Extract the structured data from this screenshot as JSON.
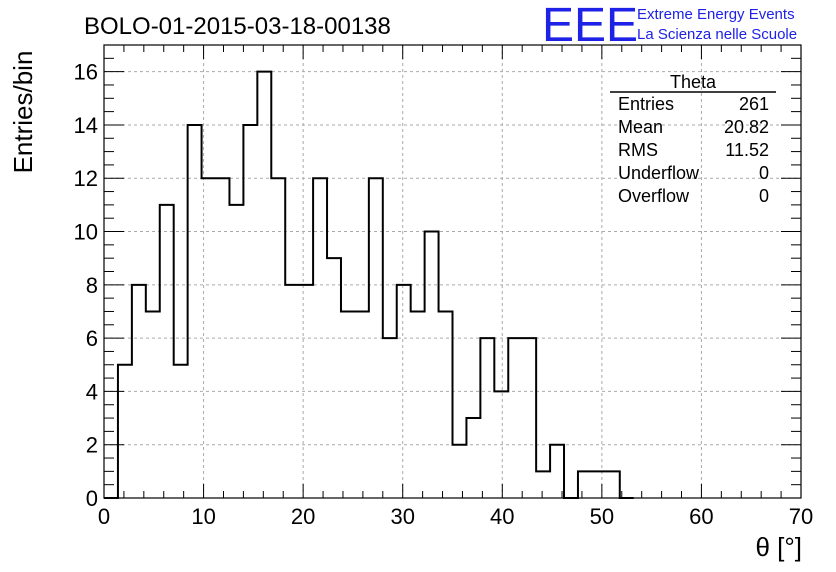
{
  "chart_data": {
    "type": "bar",
    "title": "BOLO-01-2015-03-18-00138",
    "xlabel": "θ [°]",
    "ylabel": "Entries/bin",
    "xlim": [
      0,
      70
    ],
    "ylim": [
      0,
      17
    ],
    "grid": true,
    "bin_width": 1.4,
    "x": [
      0.0,
      1.4,
      2.8,
      4.2,
      5.6,
      7.0,
      8.4,
      9.8,
      11.2,
      12.6,
      14.0,
      15.4,
      16.8,
      18.2,
      19.6,
      21.0,
      22.4,
      23.8,
      25.2,
      26.6,
      28.0,
      29.4,
      30.8,
      32.2,
      33.6,
      35.0,
      36.4,
      37.8,
      39.2,
      40.6,
      42.0,
      43.4,
      44.8,
      46.2,
      47.6,
      49.0,
      50.4,
      51.8
    ],
    "values": [
      0,
      5,
      8,
      7,
      11,
      5,
      14,
      12,
      12,
      11,
      14,
      16,
      12,
      8,
      8,
      12,
      9,
      7,
      7,
      12,
      6,
      8,
      7,
      10,
      7,
      2,
      3,
      6,
      4,
      6,
      6,
      1,
      2,
      0,
      1,
      1,
      1,
      0
    ],
    "xticks": [
      "0",
      "10",
      "20",
      "30",
      "40",
      "50",
      "60",
      "70"
    ],
    "yticks": [
      "0",
      "2",
      "4",
      "6",
      "8",
      "10",
      "12",
      "14",
      "16"
    ],
    "stats": {
      "title": "Theta",
      "rows": [
        {
          "label": "Entries",
          "value": "261"
        },
        {
          "label": "Mean",
          "value": "20.82"
        },
        {
          "label": "RMS",
          "value": "11.52"
        },
        {
          "label": "Underflow",
          "value": "0"
        },
        {
          "label": "Overflow",
          "value": "0"
        }
      ]
    }
  },
  "logo": {
    "mark": "EEE",
    "line1": "Extreme Energy Events",
    "line2": "La Scienza nelle Scuole",
    "color": "#1e22e6"
  },
  "colors": {
    "line": "#000000",
    "grid": "#aaaaaa"
  }
}
